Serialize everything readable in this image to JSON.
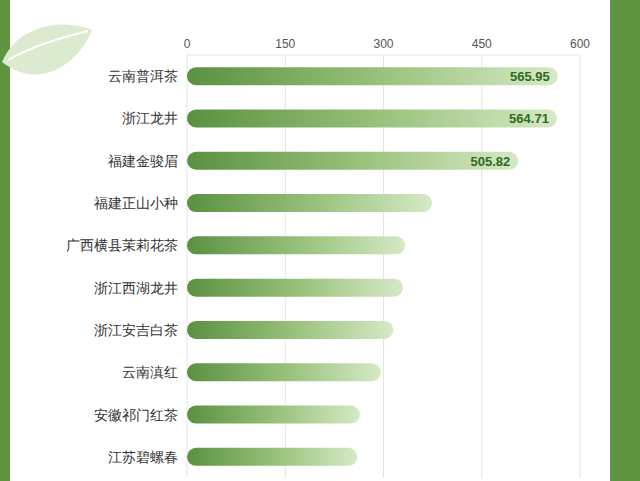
{
  "chart_data": {
    "type": "bar",
    "orientation": "horizontal",
    "categories": [
      "云南普洱茶",
      "浙江龙井",
      "福建金骏眉",
      "福建正山小种",
      "广西横县茉莉花茶",
      "浙江西湖龙井",
      "浙江安吉白茶",
      "云南滇红",
      "安徽祁门红茶",
      "江苏碧螺春"
    ],
    "values": [
      565.95,
      564.71,
      505.82,
      374,
      333,
      330,
      315,
      296,
      264,
      260
    ],
    "value_labels": [
      "565.95",
      "564.71",
      "505.82",
      null,
      null,
      null,
      null,
      null,
      null,
      null
    ],
    "data_labels": true,
    "color": "#5a9140",
    "xlim": [
      0,
      600
    ],
    "xticks": [
      0,
      150,
      300,
      450,
      600
    ],
    "grid": true
  }
}
